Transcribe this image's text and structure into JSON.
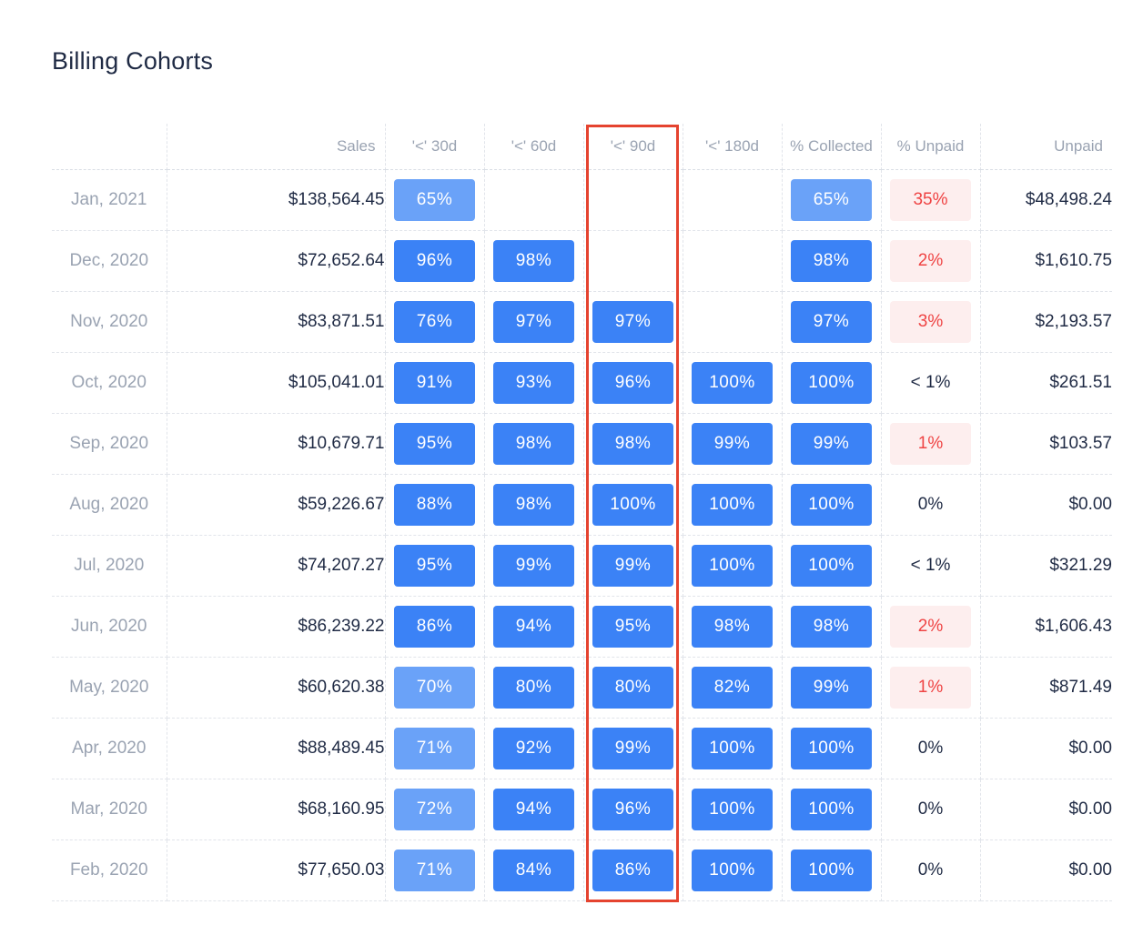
{
  "title": "Billing Cohorts",
  "columns": {
    "month": "",
    "sales": "Sales",
    "d30": "'<' 30d",
    "d60": "'<' 60d",
    "d90": "'<' 90d",
    "d180": "'<' 180d",
    "collected": "% Collected",
    "unpaid_pct": "% Unpaid",
    "unpaid": "Unpaid"
  },
  "colors": {
    "pill_strong": "#3b82f6",
    "pill_light": "#6aa2f8",
    "unpaid_red_text": "#ef4444",
    "unpaid_red_bg": "#fdeeee",
    "highlight_border": "#e5432f"
  },
  "rows": [
    {
      "month": "Jan, 2021",
      "sales": "$138,564.45",
      "d30": "65%",
      "d60": "",
      "d90": "",
      "d180": "",
      "collected": "65%",
      "unpaid_pct": "35%",
      "unpaid_flag": "red",
      "unpaid": "$48,498.24"
    },
    {
      "month": "Dec, 2020",
      "sales": "$72,652.64",
      "d30": "96%",
      "d60": "98%",
      "d90": "",
      "d180": "",
      "collected": "98%",
      "unpaid_pct": "2%",
      "unpaid_flag": "red",
      "unpaid": "$1,610.75"
    },
    {
      "month": "Nov, 2020",
      "sales": "$83,871.51",
      "d30": "76%",
      "d60": "97%",
      "d90": "97%",
      "d180": "",
      "collected": "97%",
      "unpaid_pct": "3%",
      "unpaid_flag": "red",
      "unpaid": "$2,193.57"
    },
    {
      "month": "Oct, 2020",
      "sales": "$105,041.01",
      "d30": "91%",
      "d60": "93%",
      "d90": "96%",
      "d180": "100%",
      "collected": "100%",
      "unpaid_pct": "< 1%",
      "unpaid_flag": "none",
      "unpaid": "$261.51"
    },
    {
      "month": "Sep, 2020",
      "sales": "$10,679.71",
      "d30": "95%",
      "d60": "98%",
      "d90": "98%",
      "d180": "99%",
      "collected": "99%",
      "unpaid_pct": "1%",
      "unpaid_flag": "red",
      "unpaid": "$103.57"
    },
    {
      "month": "Aug, 2020",
      "sales": "$59,226.67",
      "d30": "88%",
      "d60": "98%",
      "d90": "100%",
      "d180": "100%",
      "collected": "100%",
      "unpaid_pct": "0%",
      "unpaid_flag": "none",
      "unpaid": "$0.00"
    },
    {
      "month": "Jul, 2020",
      "sales": "$74,207.27",
      "d30": "95%",
      "d60": "99%",
      "d90": "99%",
      "d180": "100%",
      "collected": "100%",
      "unpaid_pct": "< 1%",
      "unpaid_flag": "none",
      "unpaid": "$321.29"
    },
    {
      "month": "Jun, 2020",
      "sales": "$86,239.22",
      "d30": "86%",
      "d60": "94%",
      "d90": "95%",
      "d180": "98%",
      "collected": "98%",
      "unpaid_pct": "2%",
      "unpaid_flag": "red",
      "unpaid": "$1,606.43"
    },
    {
      "month": "May, 2020",
      "sales": "$60,620.38",
      "d30": "70%",
      "d60": "80%",
      "d90": "80%",
      "d180": "82%",
      "collected": "99%",
      "unpaid_pct": "1%",
      "unpaid_flag": "red",
      "unpaid": "$871.49"
    },
    {
      "month": "Apr, 2020",
      "sales": "$88,489.45",
      "d30": "71%",
      "d60": "92%",
      "d90": "99%",
      "d180": "100%",
      "collected": "100%",
      "unpaid_pct": "0%",
      "unpaid_flag": "none",
      "unpaid": "$0.00"
    },
    {
      "month": "Mar, 2020",
      "sales": "$68,160.95",
      "d30": "72%",
      "d60": "94%",
      "d90": "96%",
      "d180": "100%",
      "collected": "100%",
      "unpaid_pct": "0%",
      "unpaid_flag": "none",
      "unpaid": "$0.00"
    },
    {
      "month": "Feb, 2020",
      "sales": "$77,650.03",
      "d30": "71%",
      "d60": "84%",
      "d90": "86%",
      "d180": "100%",
      "collected": "100%",
      "unpaid_pct": "0%",
      "unpaid_flag": "none",
      "unpaid": "$0.00"
    }
  ]
}
